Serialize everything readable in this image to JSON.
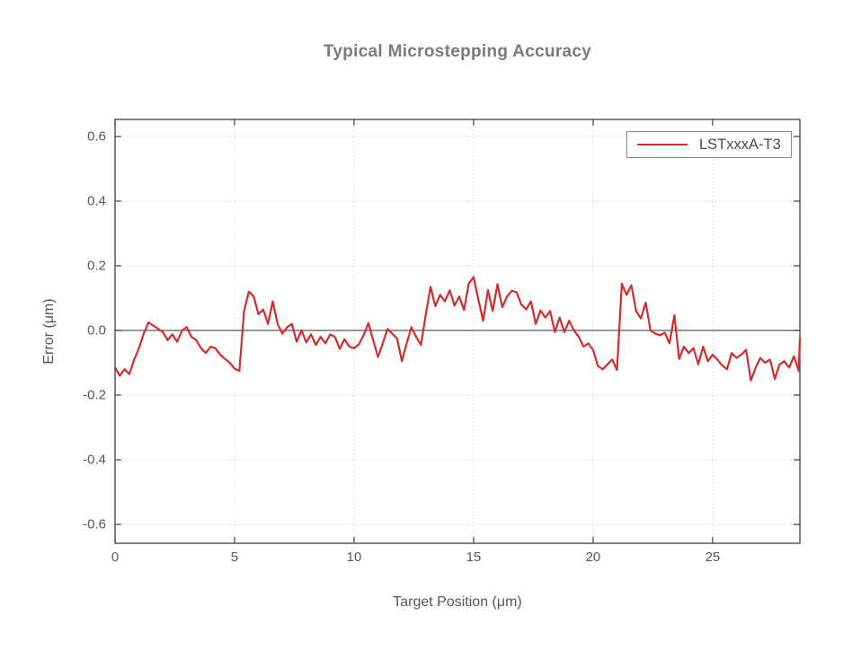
{
  "title": {
    "text": "Typical Microstepping Accuracy",
    "color": "#7b7b7b"
  },
  "colors": {
    "line_red": "#d22c2c",
    "title_gray": "#7b7b7b",
    "axis_text_gray": "#565656",
    "axis_box_gray": "#3f3f3f",
    "grid_gray": "#cdcdcd",
    "legend_border_gray": "#8a8a8a"
  },
  "chart_data": {
    "type": "line",
    "title": "Typical Microstepping Accuracy",
    "xlabel": "Target Position (μm)",
    "ylabel": "Error (μm)",
    "xlim": [
      0,
      28.65
    ],
    "ylim": [
      -0.66,
      0.65
    ],
    "grid": "dotted",
    "grid_color": "#cdcdcd",
    "zero_line": true,
    "x_ticks": [
      {
        "v": 0,
        "label": "0"
      },
      {
        "v": 5,
        "label": "5"
      },
      {
        "v": 10,
        "label": "10"
      },
      {
        "v": 15,
        "label": "15"
      },
      {
        "v": 20,
        "label": "20"
      },
      {
        "v": 25,
        "label": "25"
      }
    ],
    "y_ticks": [
      {
        "v": 0.6,
        "label": "0.6"
      },
      {
        "v": 0.4,
        "label": "0.4"
      },
      {
        "v": 0.2,
        "label": "0.2"
      },
      {
        "v": 0,
        "label": "0.0"
      },
      {
        "v": -0.2,
        "label": "-0.2"
      },
      {
        "v": -0.4,
        "label": "-0.4"
      },
      {
        "v": -0.6,
        "label": "-0.6"
      }
    ],
    "legend": {
      "position": "top-right"
    },
    "series": [
      {
        "name": "LSTxxxA-T3",
        "color": "#d22c2c",
        "points": [
          [
            0.0,
            -0.115
          ],
          [
            0.2,
            -0.14
          ],
          [
            0.4,
            -0.12
          ],
          [
            0.6,
            -0.135
          ],
          [
            0.8,
            -0.09
          ],
          [
            1.0,
            -0.055
          ],
          [
            1.2,
            -0.01
          ],
          [
            1.4,
            0.025
          ],
          [
            1.6,
            0.015
          ],
          [
            1.8,
            0.005
          ],
          [
            2.0,
            -0.005
          ],
          [
            2.2,
            -0.03
          ],
          [
            2.4,
            -0.012
          ],
          [
            2.6,
            -0.035
          ],
          [
            2.8,
            0.0
          ],
          [
            3.0,
            0.01
          ],
          [
            3.2,
            -0.02
          ],
          [
            3.4,
            -0.03
          ],
          [
            3.6,
            -0.055
          ],
          [
            3.8,
            -0.07
          ],
          [
            4.0,
            -0.05
          ],
          [
            4.2,
            -0.055
          ],
          [
            4.4,
            -0.075
          ],
          [
            4.6,
            -0.088
          ],
          [
            4.8,
            -0.1
          ],
          [
            5.0,
            -0.118
          ],
          [
            5.2,
            -0.125
          ],
          [
            5.4,
            0.06
          ],
          [
            5.6,
            0.12
          ],
          [
            5.8,
            0.105
          ],
          [
            6.0,
            0.05
          ],
          [
            6.2,
            0.065
          ],
          [
            6.4,
            0.02
          ],
          [
            6.6,
            0.09
          ],
          [
            6.8,
            0.02
          ],
          [
            7.0,
            -0.01
          ],
          [
            7.2,
            0.01
          ],
          [
            7.4,
            0.02
          ],
          [
            7.6,
            -0.035
          ],
          [
            7.8,
            0.0
          ],
          [
            8.0,
            -0.037
          ],
          [
            8.2,
            -0.012
          ],
          [
            8.4,
            -0.045
          ],
          [
            8.6,
            -0.02
          ],
          [
            8.8,
            -0.04
          ],
          [
            9.0,
            -0.012
          ],
          [
            9.2,
            -0.02
          ],
          [
            9.4,
            -0.057
          ],
          [
            9.6,
            -0.027
          ],
          [
            9.8,
            -0.05
          ],
          [
            10.0,
            -0.055
          ],
          [
            10.2,
            -0.043
          ],
          [
            10.4,
            -0.015
          ],
          [
            10.6,
            0.023
          ],
          [
            10.8,
            -0.03
          ],
          [
            11.0,
            -0.082
          ],
          [
            11.2,
            -0.04
          ],
          [
            11.4,
            0.005
          ],
          [
            11.6,
            -0.01
          ],
          [
            11.8,
            -0.025
          ],
          [
            12.0,
            -0.095
          ],
          [
            12.2,
            -0.04
          ],
          [
            12.4,
            0.01
          ],
          [
            12.6,
            -0.02
          ],
          [
            12.8,
            -0.045
          ],
          [
            13.0,
            0.05
          ],
          [
            13.2,
            0.135
          ],
          [
            13.4,
            0.075
          ],
          [
            13.6,
            0.11
          ],
          [
            13.8,
            0.09
          ],
          [
            14.0,
            0.124
          ],
          [
            14.2,
            0.077
          ],
          [
            14.4,
            0.105
          ],
          [
            14.6,
            0.063
          ],
          [
            14.8,
            0.145
          ],
          [
            15.0,
            0.165
          ],
          [
            15.2,
            0.095
          ],
          [
            15.4,
            0.03
          ],
          [
            15.6,
            0.125
          ],
          [
            15.8,
            0.06
          ],
          [
            16.0,
            0.143
          ],
          [
            16.2,
            0.072
          ],
          [
            16.4,
            0.105
          ],
          [
            16.6,
            0.123
          ],
          [
            16.8,
            0.118
          ],
          [
            17.0,
            0.08
          ],
          [
            17.2,
            0.065
          ],
          [
            17.4,
            0.09
          ],
          [
            17.6,
            0.02
          ],
          [
            17.8,
            0.062
          ],
          [
            18.0,
            0.04
          ],
          [
            18.2,
            0.06
          ],
          [
            18.4,
            -0.005
          ],
          [
            18.6,
            0.04
          ],
          [
            18.8,
            -0.005
          ],
          [
            19.0,
            0.03
          ],
          [
            19.2,
            0.0
          ],
          [
            19.4,
            -0.02
          ],
          [
            19.6,
            -0.05
          ],
          [
            19.8,
            -0.04
          ],
          [
            20.0,
            -0.06
          ],
          [
            20.2,
            -0.11
          ],
          [
            20.4,
            -0.12
          ],
          [
            20.6,
            -0.105
          ],
          [
            20.8,
            -0.09
          ],
          [
            21.0,
            -0.122
          ],
          [
            21.2,
            0.145
          ],
          [
            21.4,
            0.11
          ],
          [
            21.6,
            0.14
          ],
          [
            21.8,
            0.06
          ],
          [
            22.0,
            0.037
          ],
          [
            22.2,
            0.086
          ],
          [
            22.4,
            0.0
          ],
          [
            22.6,
            -0.01
          ],
          [
            22.8,
            -0.015
          ],
          [
            23.0,
            -0.007
          ],
          [
            23.2,
            -0.04
          ],
          [
            23.4,
            0.047
          ],
          [
            23.6,
            -0.088
          ],
          [
            23.8,
            -0.05
          ],
          [
            24.0,
            -0.07
          ],
          [
            24.2,
            -0.055
          ],
          [
            24.4,
            -0.105
          ],
          [
            24.6,
            -0.05
          ],
          [
            24.8,
            -0.095
          ],
          [
            25.0,
            -0.075
          ],
          [
            25.2,
            -0.09
          ],
          [
            25.4,
            -0.108
          ],
          [
            25.6,
            -0.12
          ],
          [
            25.8,
            -0.07
          ],
          [
            26.0,
            -0.085
          ],
          [
            26.2,
            -0.075
          ],
          [
            26.4,
            -0.06
          ],
          [
            26.6,
            -0.155
          ],
          [
            26.8,
            -0.115
          ],
          [
            27.0,
            -0.085
          ],
          [
            27.2,
            -0.1
          ],
          [
            27.4,
            -0.09
          ],
          [
            27.6,
            -0.15
          ],
          [
            27.8,
            -0.105
          ],
          [
            28.0,
            -0.095
          ],
          [
            28.2,
            -0.115
          ],
          [
            28.4,
            -0.08
          ],
          [
            28.6,
            -0.125
          ],
          [
            28.65,
            -0.025
          ]
        ]
      }
    ]
  }
}
